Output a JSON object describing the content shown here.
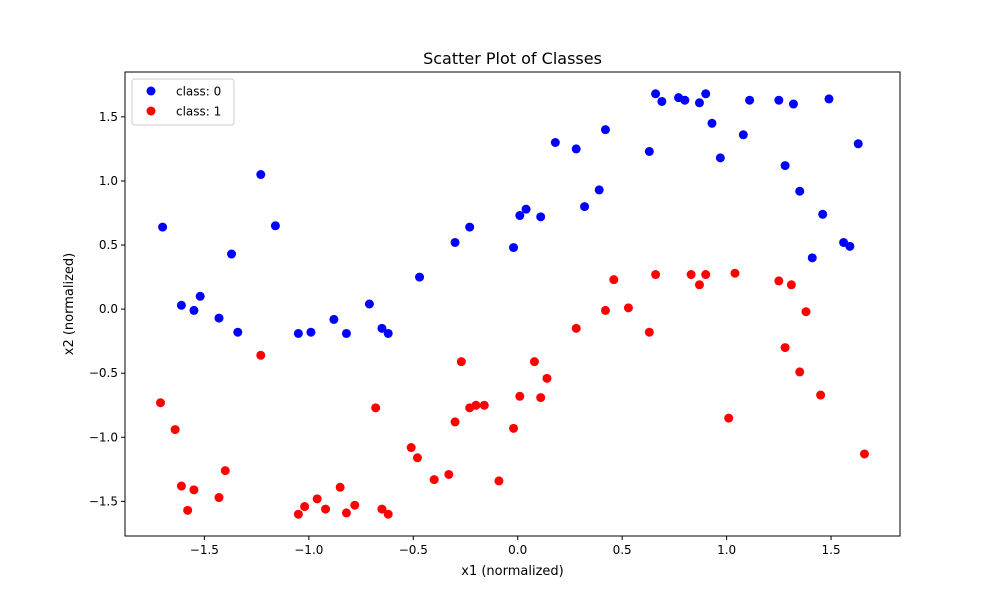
{
  "chart_data": {
    "type": "scatter",
    "title": "Scatter Plot of Classes",
    "xlabel": "x1 (normalized)",
    "ylabel": "x2 (normalized)",
    "xlim": [
      -1.88,
      1.83
    ],
    "ylim": [
      -1.77,
      1.85
    ],
    "xticks": [
      -1.5,
      -1.0,
      -0.5,
      0.0,
      0.5,
      1.0,
      1.5
    ],
    "xtick_labels": [
      "−1.5",
      "−1.0",
      "−0.5",
      "0.0",
      "0.5",
      "1.0",
      "1.5"
    ],
    "yticks": [
      -1.5,
      -1.0,
      -0.5,
      0.0,
      0.5,
      1.0,
      1.5
    ],
    "ytick_labels": [
      "−1.5",
      "−1.0",
      "−0.5",
      "0.0",
      "0.5",
      "1.0",
      "1.5"
    ],
    "grid": false,
    "legend_position": "upper-left",
    "series": [
      {
        "name": "class: 0",
        "color": "#0000ff",
        "points": [
          [
            -1.7,
            0.64
          ],
          [
            -1.61,
            0.03
          ],
          [
            -1.55,
            -0.01
          ],
          [
            -1.52,
            0.1
          ],
          [
            -1.43,
            -0.07
          ],
          [
            -1.37,
            0.43
          ],
          [
            -1.34,
            -0.18
          ],
          [
            -1.23,
            1.05
          ],
          [
            -1.16,
            0.65
          ],
          [
            -1.05,
            -0.19
          ],
          [
            -0.99,
            -0.18
          ],
          [
            -0.88,
            -0.08
          ],
          [
            -0.82,
            -0.19
          ],
          [
            -0.71,
            0.04
          ],
          [
            -0.65,
            -0.15
          ],
          [
            -0.62,
            -0.19
          ],
          [
            -0.47,
            0.25
          ],
          [
            -0.3,
            0.52
          ],
          [
            -0.23,
            0.64
          ],
          [
            -0.02,
            0.48
          ],
          [
            0.01,
            0.73
          ],
          [
            0.04,
            0.78
          ],
          [
            0.11,
            0.72
          ],
          [
            0.18,
            1.3
          ],
          [
            0.28,
            1.25
          ],
          [
            0.32,
            0.8
          ],
          [
            0.39,
            0.93
          ],
          [
            0.42,
            1.4
          ],
          [
            0.63,
            1.23
          ],
          [
            0.66,
            1.68
          ],
          [
            0.69,
            1.62
          ],
          [
            0.77,
            1.65
          ],
          [
            0.8,
            1.63
          ],
          [
            0.87,
            1.61
          ],
          [
            0.9,
            1.68
          ],
          [
            0.93,
            1.45
          ],
          [
            0.97,
            1.18
          ],
          [
            1.08,
            1.36
          ],
          [
            1.11,
            1.63
          ],
          [
            1.25,
            1.63
          ],
          [
            1.28,
            1.12
          ],
          [
            1.32,
            1.6
          ],
          [
            1.35,
            0.92
          ],
          [
            1.41,
            0.4
          ],
          [
            1.46,
            0.74
          ],
          [
            1.49,
            1.64
          ],
          [
            1.56,
            0.52
          ],
          [
            1.59,
            0.49
          ],
          [
            1.63,
            1.29
          ]
        ]
      },
      {
        "name": "class: 1",
        "color": "#ff0000",
        "points": [
          [
            -1.71,
            -0.73
          ],
          [
            -1.64,
            -0.94
          ],
          [
            -1.61,
            -1.38
          ],
          [
            -1.58,
            -1.57
          ],
          [
            -1.55,
            -1.41
          ],
          [
            -1.43,
            -1.47
          ],
          [
            -1.4,
            -1.26
          ],
          [
            -1.23,
            -0.36
          ],
          [
            -1.05,
            -1.6
          ],
          [
            -1.02,
            -1.54
          ],
          [
            -0.96,
            -1.48
          ],
          [
            -0.92,
            -1.56
          ],
          [
            -0.85,
            -1.39
          ],
          [
            -0.82,
            -1.59
          ],
          [
            -0.78,
            -1.53
          ],
          [
            -0.68,
            -0.77
          ],
          [
            -0.65,
            -1.56
          ],
          [
            -0.62,
            -1.6
          ],
          [
            -0.51,
            -1.08
          ],
          [
            -0.48,
            -1.16
          ],
          [
            -0.4,
            -1.33
          ],
          [
            -0.33,
            -1.29
          ],
          [
            -0.3,
            -0.88
          ],
          [
            -0.27,
            -0.41
          ],
          [
            -0.23,
            -0.77
          ],
          [
            -0.2,
            -0.75
          ],
          [
            -0.16,
            -0.75
          ],
          [
            -0.09,
            -1.34
          ],
          [
            -0.02,
            -0.93
          ],
          [
            0.01,
            -0.68
          ],
          [
            0.08,
            -0.41
          ],
          [
            0.11,
            -0.69
          ],
          [
            0.14,
            -0.54
          ],
          [
            0.28,
            -0.15
          ],
          [
            0.42,
            -0.01
          ],
          [
            0.46,
            0.23
          ],
          [
            0.53,
            0.01
          ],
          [
            0.63,
            -0.18
          ],
          [
            0.66,
            0.27
          ],
          [
            0.83,
            0.27
          ],
          [
            0.87,
            0.19
          ],
          [
            0.9,
            0.27
          ],
          [
            1.01,
            -0.85
          ],
          [
            1.04,
            0.28
          ],
          [
            1.25,
            0.22
          ],
          [
            1.28,
            -0.3
          ],
          [
            1.31,
            0.19
          ],
          [
            1.35,
            -0.49
          ],
          [
            1.38,
            -0.02
          ],
          [
            1.45,
            -0.67
          ],
          [
            1.66,
            -1.13
          ]
        ]
      }
    ]
  }
}
